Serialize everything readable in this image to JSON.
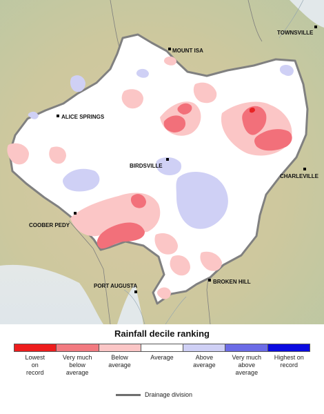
{
  "map": {
    "cities": [
      {
        "id": "mount-isa",
        "name": "MOUNT ISA"
      },
      {
        "id": "townsville",
        "name": "TOWNSVILLE"
      },
      {
        "id": "alice-springs",
        "name": "ALICE SPRINGS"
      },
      {
        "id": "birdsville",
        "name": "BIRDSVILLE"
      },
      {
        "id": "charleville",
        "name": "CHARLEVILLE"
      },
      {
        "id": "coober-pedy",
        "name": "COOBER PEDY"
      },
      {
        "id": "port-augusta",
        "name": "PORT AUGUSTA"
      },
      {
        "id": "broken-hill",
        "name": "BROKEN HILL"
      }
    ],
    "colors": {
      "terrain": "#c9cfb0",
      "basin_fill": "#ffffff",
      "basin_border": "#7a7a7a",
      "below_average": "#fbc6c6",
      "very_much_below": "#f2707a",
      "lowest_on_record": "#e82323",
      "above_average": "#cfd0f5",
      "sea": "#dbe4e8"
    }
  },
  "legend": {
    "title": "Rainfall decile ranking",
    "categories": [
      {
        "label": "Lowest\non\nrecord",
        "color": "#ee1c1c"
      },
      {
        "label": "Very much\nbelow\naverage",
        "color": "#f27a80"
      },
      {
        "label": "Below\naverage",
        "color": "#fbc6c6"
      },
      {
        "label": "Average",
        "color": "#ffffff"
      },
      {
        "label": "Above\naverage",
        "color": "#cfd0f5"
      },
      {
        "label": "Very much\nabove\naverage",
        "color": "#6b6be6"
      },
      {
        "label": "Highest on\nrecord",
        "color": "#0a0ae0"
      }
    ],
    "drainage_label": "Drainage division"
  }
}
